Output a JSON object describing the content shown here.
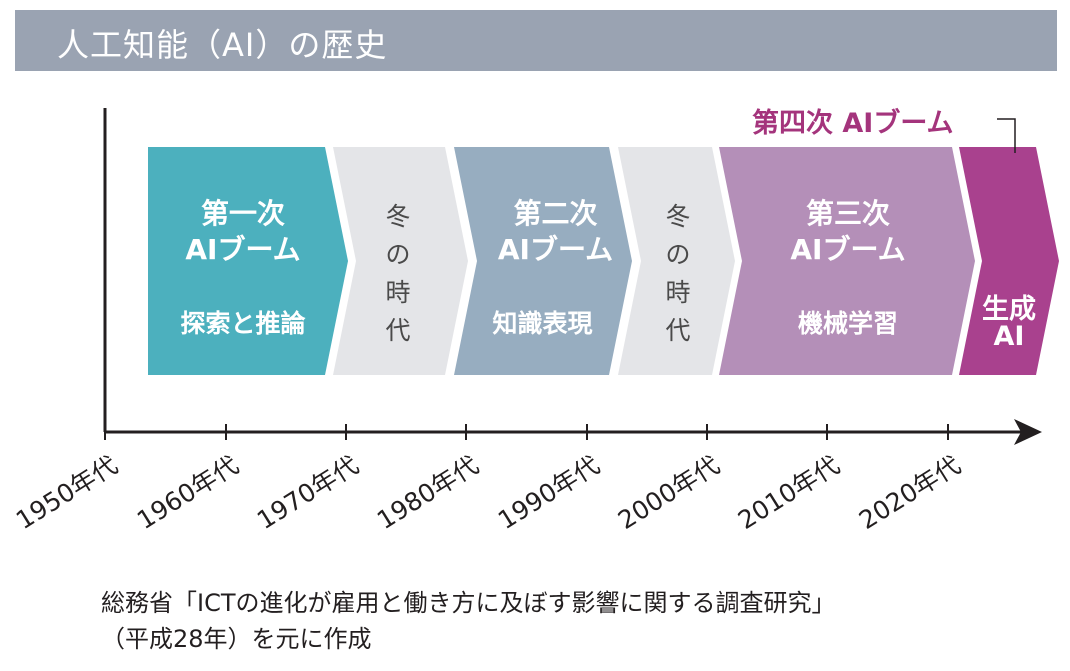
{
  "header": {
    "title": "人工知能（AI）の歴史"
  },
  "colors": {
    "header_bg": "#9aa3b2",
    "boom1": "#4cb0be",
    "winter": "#e4e5e8",
    "boom2": "#97adc0",
    "boom3": "#b48fb8",
    "generative": "#a9418e",
    "fourth_label": "#a4347c"
  },
  "segments": [
    {
      "title": "第一次",
      "subtitle": "AIブーム",
      "theme": "探索と推論"
    },
    {
      "vertical": [
        "冬",
        "の",
        "時",
        "代"
      ]
    },
    {
      "title": "第二次",
      "subtitle": "AIブーム",
      "theme": "知識表現"
    },
    {
      "vertical": [
        "冬",
        "の",
        "時",
        "代"
      ]
    },
    {
      "title": "第三次",
      "subtitle": "AIブーム",
      "theme": "機械学習"
    },
    {
      "title": "生成",
      "subtitle": "AI"
    }
  ],
  "fourth_boom_label": "第四次 AIブーム",
  "decades": [
    "1950年代",
    "1960年代",
    "1970年代",
    "1980年代",
    "1990年代",
    "2000年代",
    "2010年代",
    "2020年代"
  ],
  "source": {
    "line1": "総務省「ICTの進化が雇用と働き方に及ぼす影響に関する調査研究」",
    "line2": "（平成28年）を元に作成"
  }
}
